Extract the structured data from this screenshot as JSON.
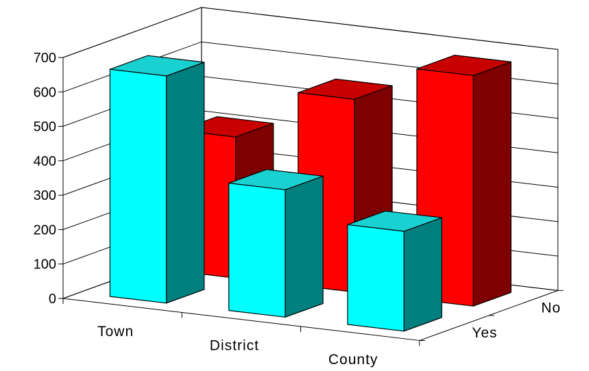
{
  "chart_data": {
    "type": "bar",
    "subtype": "3d-column",
    "title": "",
    "xlabel": "",
    "ylabel": "",
    "categories": [
      "Town",
      "District",
      "County"
    ],
    "series": [
      {
        "name": "No",
        "values": [
          410,
          560,
          670
        ]
      },
      {
        "name": "Yes",
        "values": [
          660,
          370,
          290
        ]
      }
    ],
    "ylim": [
      0,
      700
    ],
    "yticks": [
      0,
      100,
      200,
      300,
      400,
      500,
      600,
      700
    ],
    "yticklabels": [
      "0",
      "100",
      "200",
      "300",
      "400",
      "500",
      "600",
      "700"
    ],
    "depth_labels": [
      "Yes",
      "No"
    ],
    "grid": true,
    "legend": "none",
    "colors": {
      "Yes": {
        "front": "#00ffff",
        "top": "#1ad1d1",
        "side": "#007f7f"
      },
      "No": {
        "front": "#ff0000",
        "top": "#c80000",
        "side": "#7f0000"
      }
    }
  }
}
